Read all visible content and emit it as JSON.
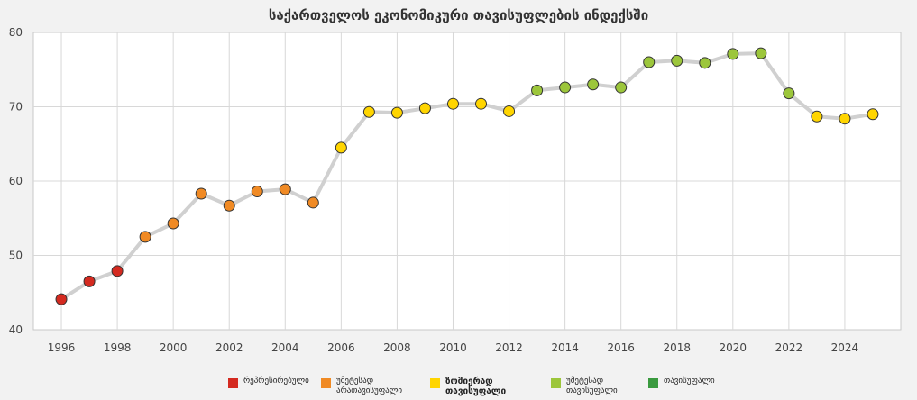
{
  "chart_data": {
    "type": "line",
    "title": "საქართველოს ეკონომიკური თავისუფლების ინდექსში",
    "xlabel": "",
    "ylabel": "",
    "xlim": [
      1995,
      2026
    ],
    "ylim": [
      40,
      80
    ],
    "yticks": [
      40,
      50,
      60,
      70,
      80
    ],
    "xticks": [
      1996,
      1998,
      2000,
      2002,
      2004,
      2006,
      2008,
      2010,
      2012,
      2014,
      2016,
      2018,
      2020,
      2022,
      2024
    ],
    "grid": true,
    "legend_position": "bottom",
    "line_color": "#d0d0d0",
    "x": [
      1996,
      1997,
      1998,
      1999,
      2000,
      2001,
      2002,
      2003,
      2004,
      2005,
      2006,
      2007,
      2008,
      2009,
      2010,
      2011,
      2012,
      2013,
      2014,
      2015,
      2016,
      2017,
      2018,
      2019,
      2020,
      2021,
      2022,
      2023,
      2024,
      2025
    ],
    "values": [
      44.1,
      46.5,
      47.9,
      52.5,
      54.3,
      58.3,
      56.7,
      58.6,
      58.9,
      57.1,
      64.5,
      69.3,
      69.2,
      69.8,
      70.4,
      70.4,
      69.4,
      72.2,
      72.6,
      73.0,
      72.6,
      76.0,
      76.2,
      75.9,
      77.1,
      77.2,
      71.8,
      68.7,
      68.4,
      69.0
    ],
    "categories_index": [
      0,
      0,
      0,
      1,
      1,
      1,
      1,
      1,
      1,
      1,
      2,
      2,
      2,
      2,
      2,
      2,
      2,
      3,
      3,
      3,
      3,
      3,
      3,
      3,
      3,
      3,
      3,
      2,
      2,
      2
    ],
    "legend": [
      {
        "label": "რეპრესირებული",
        "color": "#d42a20",
        "bold": false
      },
      {
        "label": "უმეტესად\nარათავისუფალი",
        "color": "#f08a24",
        "bold": false
      },
      {
        "label": "ზომიერად\nთავისუფალი",
        "color": "#ffd500",
        "bold": true
      },
      {
        "label": "უმეტესად\nთავისუფალი",
        "color": "#9cc63b",
        "bold": false
      },
      {
        "label": "თავისუფალი",
        "color": "#3a9a3f",
        "bold": false
      }
    ]
  }
}
